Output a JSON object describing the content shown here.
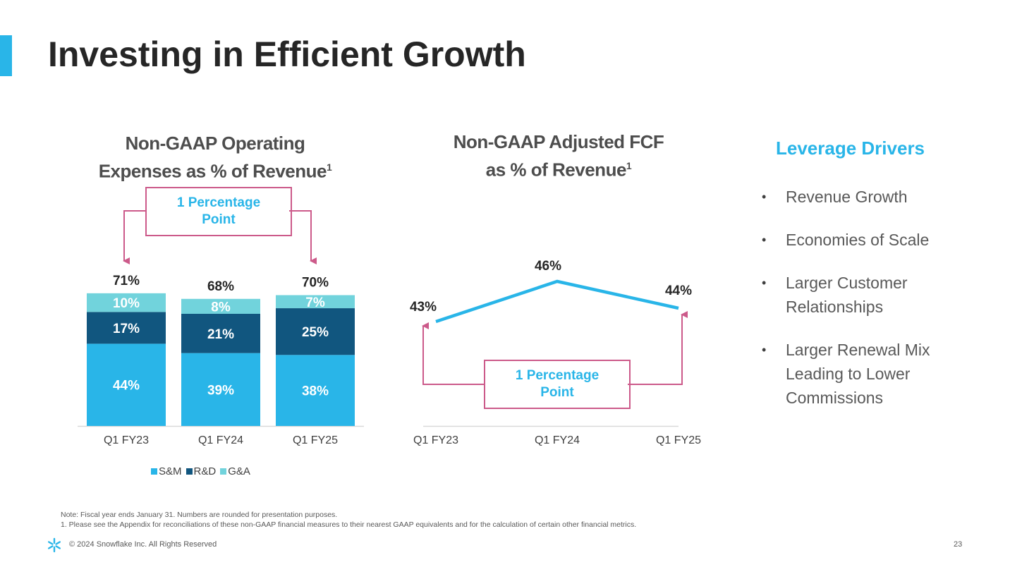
{
  "slide": {
    "title": "Investing in Efficient Growth",
    "page_number": "23",
    "copyright": "© 2024 Snowflake Inc. All Rights Reserved",
    "note_line1": "Note: Fiscal year ends January 31. Numbers are rounded for presentation purposes.",
    "note_line2": "1.  Please see the Appendix for reconciliations of these non-GAAP financial measures to their nearest GAAP equivalents and for the calculation of certain other financial metrics."
  },
  "colors": {
    "accent": "#29b5e8",
    "sm": "#29b5e8",
    "rd": "#11567f",
    "ga": "#71d3dc",
    "callout_border": "#cc5a8a"
  },
  "callout1": {
    "text_line1": "1 Percentage",
    "text_line2": "Point"
  },
  "callout2": {
    "text_line1": "1 Percentage",
    "text_line2": "Point"
  },
  "drivers": {
    "title": "Leverage Drivers",
    "items": [
      "Revenue Growth",
      "Economies of Scale",
      "Larger Customer Relationships",
      "Larger Renewal Mix Leading to Lower Commissions"
    ]
  },
  "chart_data": [
    {
      "type": "bar",
      "stacked": true,
      "title_line1": "Non-GAAP Operating",
      "title_line2": "Expenses as % of Revenue",
      "title_sup": "1",
      "categories": [
        "Q1 FY23",
        "Q1 FY24",
        "Q1 FY25"
      ],
      "series": [
        {
          "name": "S&M",
          "values": [
            44,
            39,
            38
          ],
          "labels": [
            "44%",
            "39%",
            "38%"
          ]
        },
        {
          "name": "R&D",
          "values": [
            17,
            21,
            25
          ],
          "labels": [
            "17%",
            "21%",
            "25%"
          ]
        },
        {
          "name": "G&A",
          "values": [
            10,
            8,
            7
          ],
          "labels": [
            "10%",
            "8%",
            "7%"
          ]
        }
      ],
      "totals": [
        71,
        68,
        70
      ],
      "total_labels": [
        "71%",
        "68%",
        "70%"
      ],
      "legend_position": "bottom"
    },
    {
      "type": "line",
      "title_line1": "Non-GAAP Adjusted FCF",
      "title_line2": "as % of Revenue",
      "title_sup": "1",
      "categories": [
        "Q1 FY23",
        "Q1 FY24",
        "Q1 FY25"
      ],
      "values": [
        43,
        46,
        44
      ],
      "labels": [
        "43%",
        "46%",
        "44%"
      ]
    }
  ]
}
